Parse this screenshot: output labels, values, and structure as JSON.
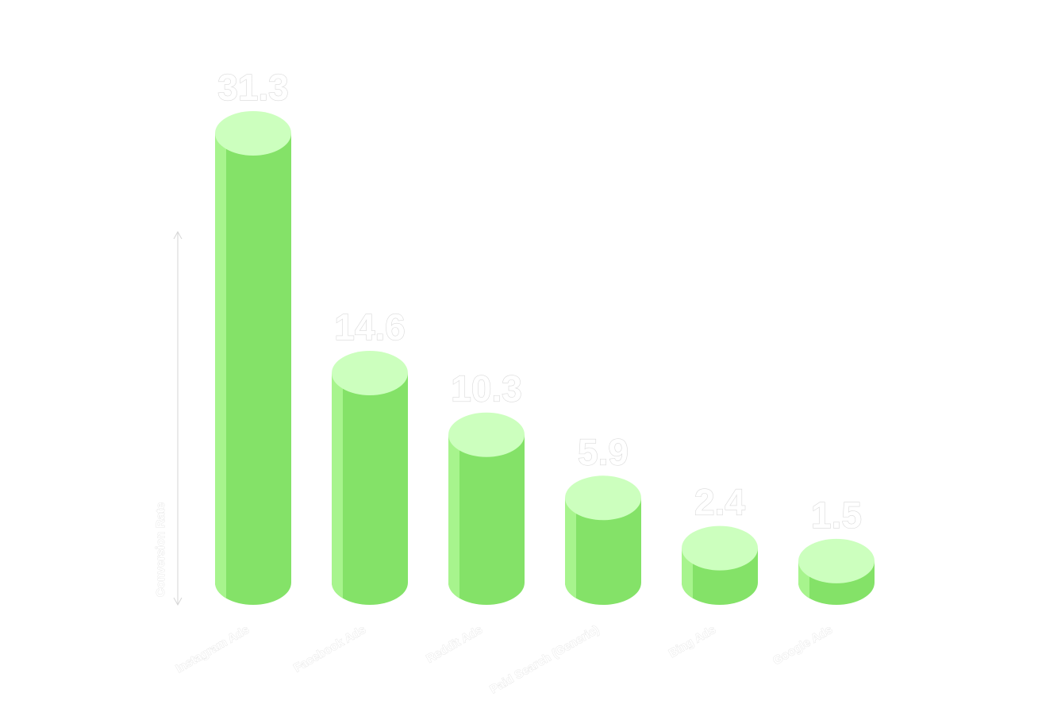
{
  "chart_data": {
    "type": "bar",
    "style": "3d-cylinder",
    "title": "",
    "xlabel": "",
    "ylabel": "Conversion Rate",
    "categories": [
      "Instagram Ads",
      "Facebook Ads",
      "Reddit Ads",
      "Paid Search (Generic)",
      "Bing Ads",
      "Google Ads"
    ],
    "values": [
      31.3,
      14.6,
      10.3,
      5.9,
      2.4,
      1.5
    ],
    "value_labels": [
      "31.3",
      "14.6",
      "10.3",
      "5.9",
      "2.4",
      "1.5"
    ],
    "ylim": [
      0,
      31.3
    ],
    "grid": false,
    "legend": "none",
    "colors": {
      "body": "#84e268",
      "body_highlight": "#a7f48d",
      "top": "#ccffbe",
      "label_fill": "#ffffff",
      "label_outline": "#d9d9d9",
      "axis": "#d6d6d6"
    }
  }
}
